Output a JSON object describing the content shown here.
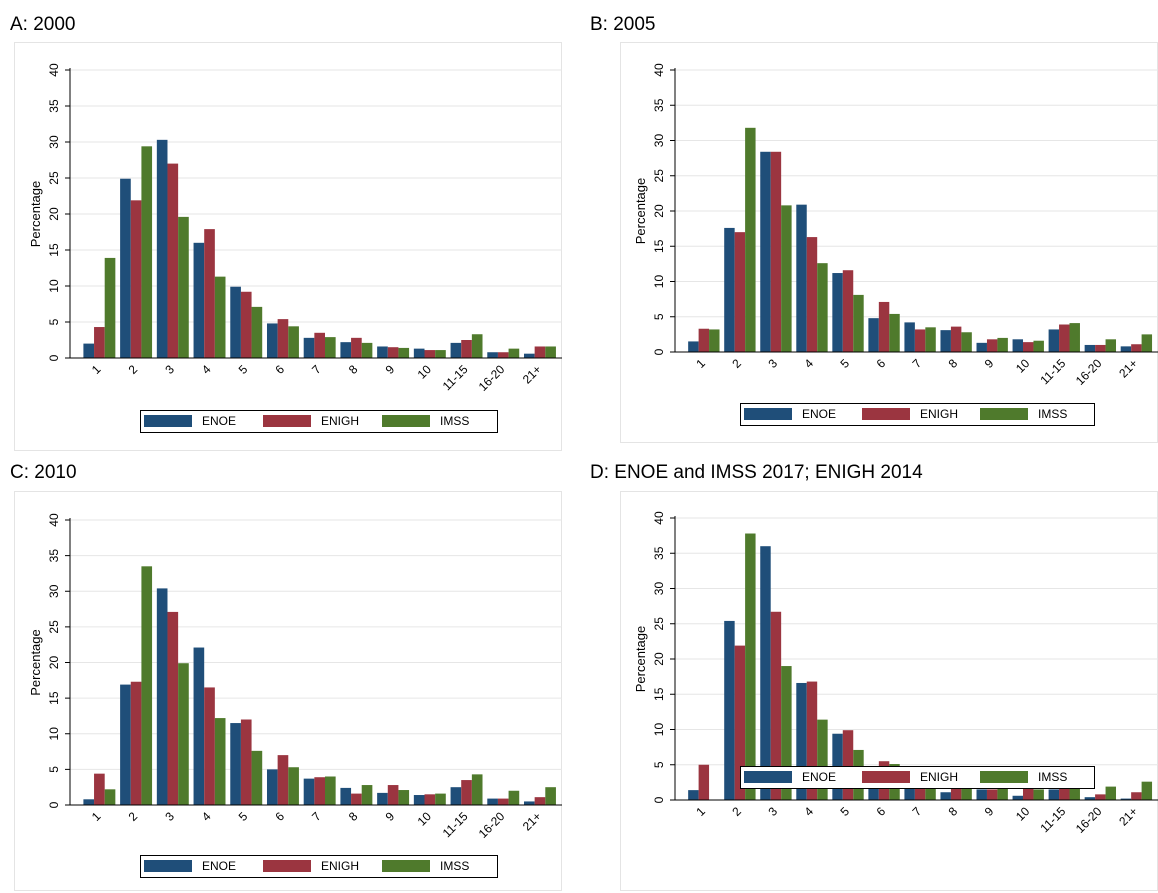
{
  "colors": {
    "ENOE": "#1f4e79",
    "ENIGH": "#9b3540",
    "IMSS": "#4f7a2c"
  },
  "panels": [
    {
      "title": "A: 2000"
    },
    {
      "title": "B: 2005"
    },
    {
      "title": "C: 2010"
    },
    {
      "title": "D: ENOE and IMSS 2017; ENIGH 2014"
    }
  ],
  "chart_data": [
    {
      "type": "bar",
      "title": "A: 2000",
      "ylabel": "Percentage",
      "ylim": [
        0,
        40
      ],
      "yticks": [
        0,
        5,
        10,
        15,
        20,
        25,
        30,
        35,
        40
      ],
      "grid": true,
      "legend": "bottom",
      "categories": [
        "1",
        "2",
        "3",
        "4",
        "5",
        "6",
        "7",
        "8",
        "9",
        "10",
        "11-15",
        "16-20",
        "21+"
      ],
      "series": [
        {
          "name": "ENOE",
          "values": [
            2.0,
            24.9,
            30.3,
            16.0,
            9.9,
            4.8,
            2.8,
            2.2,
            1.6,
            1.3,
            2.1,
            0.8,
            0.6
          ]
        },
        {
          "name": "ENIGH",
          "values": [
            4.3,
            21.9,
            27.0,
            17.9,
            9.2,
            5.4,
            3.5,
            2.8,
            1.5,
            1.1,
            2.5,
            0.8,
            1.6
          ]
        },
        {
          "name": "IMSS",
          "values": [
            13.9,
            29.4,
            19.6,
            11.3,
            7.1,
            4.4,
            2.9,
            2.1,
            1.4,
            1.1,
            3.3,
            1.3,
            1.6
          ]
        }
      ]
    },
    {
      "type": "bar",
      "title": "B: 2005",
      "ylabel": "Percentage",
      "ylim": [
        0,
        40
      ],
      "yticks": [
        0,
        5,
        10,
        15,
        20,
        25,
        30,
        35,
        40
      ],
      "grid": true,
      "legend": "bottom",
      "categories": [
        "1",
        "2",
        "3",
        "4",
        "5",
        "6",
        "7",
        "8",
        "9",
        "10",
        "11-15",
        "16-20",
        "21+"
      ],
      "series": [
        {
          "name": "ENOE",
          "values": [
            1.5,
            17.6,
            28.4,
            20.9,
            11.2,
            4.8,
            4.2,
            3.1,
            1.3,
            1.8,
            3.2,
            1.0,
            0.8
          ]
        },
        {
          "name": "ENIGH",
          "values": [
            3.3,
            17.0,
            28.4,
            16.3,
            11.6,
            7.1,
            3.2,
            3.6,
            1.8,
            1.4,
            3.9,
            1.0,
            1.1
          ]
        },
        {
          "name": "IMSS",
          "values": [
            3.2,
            31.8,
            20.8,
            12.6,
            8.1,
            5.4,
            3.5,
            2.8,
            2.0,
            1.6,
            4.1,
            1.8,
            2.5
          ]
        }
      ]
    },
    {
      "type": "bar",
      "title": "C: 2010",
      "ylabel": "Percentage",
      "ylim": [
        0,
        40
      ],
      "yticks": [
        0,
        5,
        10,
        15,
        20,
        25,
        30,
        35,
        40
      ],
      "grid": true,
      "legend": "bottom",
      "categories": [
        "1",
        "2",
        "3",
        "4",
        "5",
        "6",
        "7",
        "8",
        "9",
        "10",
        "11-15",
        "16-20",
        "21+"
      ],
      "series": [
        {
          "name": "ENOE",
          "values": [
            0.8,
            16.9,
            30.4,
            22.1,
            11.5,
            5.0,
            3.7,
            2.4,
            1.7,
            1.4,
            2.5,
            0.9,
            0.5
          ]
        },
        {
          "name": "ENIGH",
          "values": [
            4.4,
            17.3,
            27.1,
            16.5,
            12.0,
            7.0,
            3.9,
            1.6,
            2.8,
            1.5,
            3.5,
            0.9,
            1.1
          ]
        },
        {
          "name": "IMSS",
          "values": [
            2.2,
            33.5,
            19.9,
            12.2,
            7.6,
            5.3,
            4.0,
            2.8,
            2.1,
            1.6,
            4.3,
            2.0,
            2.5
          ]
        }
      ]
    },
    {
      "type": "bar",
      "title": "D: ENOE and IMSS 2017; ENIGH 2014",
      "ylabel": "Percentage",
      "ylim": [
        0,
        40
      ],
      "yticks": [
        0,
        5,
        10,
        15,
        20,
        25,
        30,
        35,
        40
      ],
      "grid": true,
      "legend": "bottom",
      "categories": [
        "1",
        "2",
        "3",
        "4",
        "5",
        "6",
        "7",
        "8",
        "9",
        "10",
        "11-15",
        "16-20",
        "21+"
      ],
      "series": [
        {
          "name": "ENOE",
          "values": [
            1.4,
            25.4,
            36.0,
            16.6,
            9.4,
            3.3,
            2.5,
            1.1,
            1.5,
            0.6,
            1.5,
            0.4,
            0.2
          ]
        },
        {
          "name": "ENIGH",
          "values": [
            5.0,
            21.9,
            26.7,
            16.8,
            9.9,
            5.5,
            3.0,
            3.2,
            1.5,
            1.6,
            2.9,
            0.8,
            1.1
          ]
        },
        {
          "name": "IMSS",
          "values": [
            0.0,
            37.8,
            19.0,
            11.4,
            7.1,
            5.1,
            4.2,
            2.7,
            2.0,
            1.5,
            4.2,
            1.9,
            2.6
          ]
        }
      ]
    }
  ]
}
